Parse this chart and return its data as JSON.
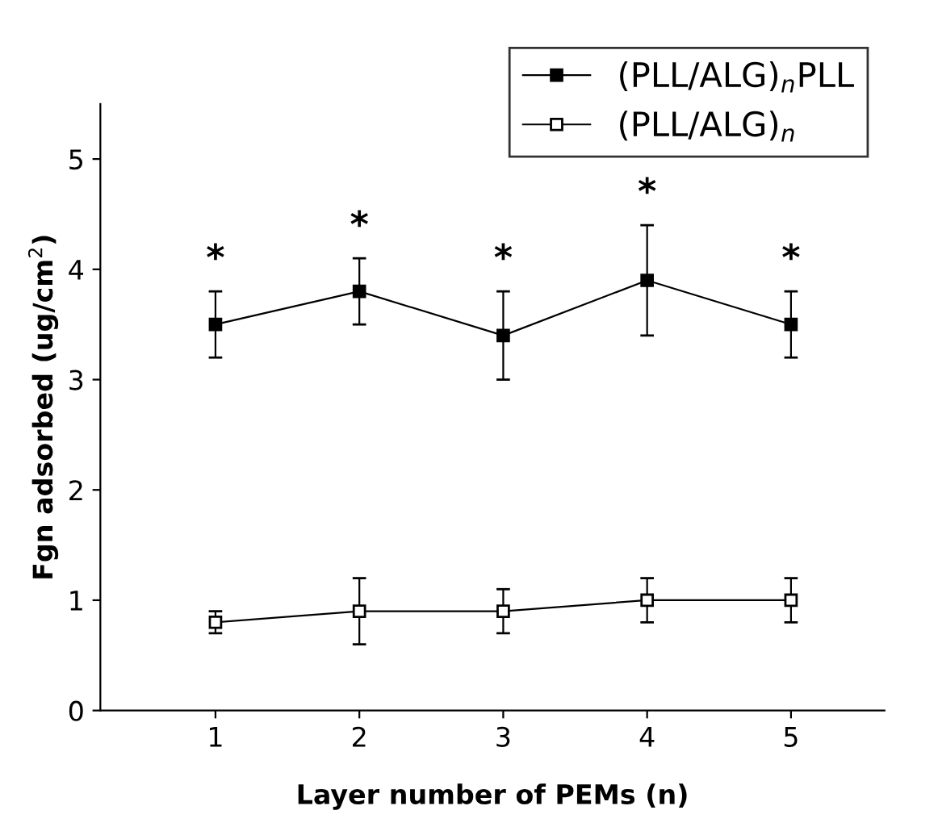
{
  "chart_data": {
    "type": "line",
    "xlabel": "Layer number of PEMs (n)",
    "ylabel": "Fgn adsorbed (ug/cm$^{2}$)",
    "x": [
      1,
      2,
      3,
      4,
      5
    ],
    "xlim": [
      0.2,
      5.65
    ],
    "xticks": [
      1,
      2,
      3,
      4,
      5
    ],
    "ylim": [
      0,
      5.5
    ],
    "yticks": [
      0,
      1,
      2,
      3,
      4,
      5
    ],
    "series": [
      {
        "name": "(PLL/ALG)$_{n}$PLL",
        "color": "#000000",
        "values": [
          3.5,
          3.8,
          3.4,
          3.9,
          3.5
        ],
        "errors": [
          0.3,
          0.3,
          0.4,
          0.5,
          0.3
        ],
        "marker": "square"
      },
      {
        "name": "(PLL/ALG)$_{n}$",
        "color": "#000000",
        "values": [
          0.8,
          0.9,
          0.9,
          1.0,
          1.0
        ],
        "errors": [
          0.1,
          0.3,
          0.2,
          0.2,
          0.2
        ],
        "marker": "square"
      }
    ],
    "annotations": [
      "*",
      "*",
      "*",
      "*",
      "*"
    ],
    "legend": "top right",
    "grid": false,
    "line_style": "solid"
  }
}
